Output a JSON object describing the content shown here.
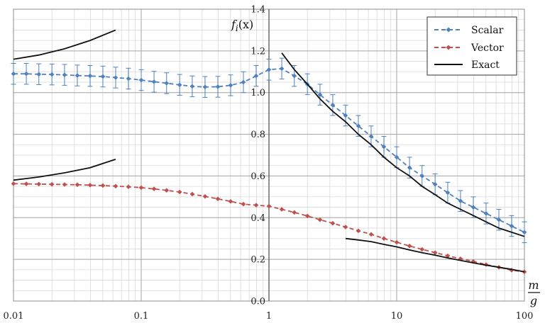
{
  "chart_data": {
    "type": "line",
    "x_scale": "log",
    "xlim": [
      0.01,
      100
    ],
    "ylim": [
      0,
      1.4
    ],
    "y_major_step": 0.2,
    "y_minor_step": 0.05,
    "grid": true,
    "x_ticks": [
      "0.01",
      "0.1",
      "1",
      "10",
      "100"
    ],
    "y_ticks": [
      "0.0",
      "0.2",
      "0.4",
      "0.6",
      "0.8",
      "1.0",
      "1.2",
      "1.4"
    ],
    "ylabel": "f_i(x)",
    "ylabel_parts": {
      "main": "f",
      "sub": "i",
      "arg": "(x)"
    },
    "xlabel_parts": {
      "num": "m",
      "den": "g"
    },
    "legend_position": "top-right",
    "legend": [
      {
        "name": "Scalar",
        "style": "dashed-dot",
        "color": "#4f81bd"
      },
      {
        "name": "Vector",
        "style": "dashed-dot",
        "color": "#c0504d"
      },
      {
        "name": "Exact",
        "style": "solid",
        "color": "#111111"
      }
    ],
    "series": [
      {
        "name": "Scalar",
        "color": "#4f81bd",
        "style": "dashed",
        "marker": "diamond",
        "x": [
          0.01,
          0.0126,
          0.0158,
          0.02,
          0.0251,
          0.0316,
          0.0398,
          0.0501,
          0.0631,
          0.0794,
          0.1,
          0.126,
          0.158,
          0.2,
          0.251,
          0.316,
          0.398,
          0.501,
          0.631,
          0.794,
          1.0,
          1.26,
          1.58,
          2.0,
          2.51,
          3.16,
          3.98,
          5.01,
          6.31,
          7.94,
          10.0,
          12.6,
          15.8,
          20.0,
          25.1,
          31.6,
          39.8,
          50.1,
          63.1,
          79.4,
          100
        ],
        "y": [
          1.09,
          1.09,
          1.088,
          1.087,
          1.085,
          1.082,
          1.08,
          1.077,
          1.072,
          1.067,
          1.06,
          1.052,
          1.045,
          1.037,
          1.03,
          1.027,
          1.028,
          1.035,
          1.05,
          1.08,
          1.11,
          1.115,
          1.08,
          1.04,
          0.99,
          0.94,
          0.89,
          0.84,
          0.79,
          0.74,
          0.69,
          0.64,
          0.6,
          0.56,
          0.52,
          0.48,
          0.45,
          0.42,
          0.39,
          0.36,
          0.33
        ],
        "error": [
          0.05,
          0.05,
          0.05,
          0.05,
          0.05,
          0.05,
          0.05,
          0.05,
          0.05,
          0.05,
          0.05,
          0.05,
          0.05,
          0.05,
          0.05,
          0.05,
          0.05,
          0.05,
          0.05,
          0.05,
          0.05,
          0.05,
          0.05,
          0.05,
          0.05,
          0.05,
          0.05,
          0.05,
          0.05,
          0.05,
          0.05,
          0.05,
          0.05,
          0.05,
          0.05,
          0.05,
          0.05,
          0.05,
          0.05,
          0.05,
          0.05
        ]
      },
      {
        "name": "Vector",
        "color": "#c0504d",
        "style": "dashed",
        "marker": "diamond",
        "x": [
          0.01,
          0.0126,
          0.0158,
          0.02,
          0.0251,
          0.0316,
          0.0398,
          0.0501,
          0.0631,
          0.0794,
          0.1,
          0.126,
          0.158,
          0.2,
          0.251,
          0.316,
          0.398,
          0.501,
          0.631,
          0.794,
          1.0,
          1.26,
          1.58,
          2.0,
          2.51,
          3.16,
          3.98,
          5.01,
          6.31,
          7.94,
          10.0,
          12.6,
          15.8,
          20.0,
          25.1,
          31.6,
          39.8,
          50.1,
          63.1,
          79.4,
          100
        ],
        "y": [
          0.563,
          0.562,
          0.561,
          0.56,
          0.559,
          0.558,
          0.556,
          0.554,
          0.551,
          0.548,
          0.544,
          0.538,
          0.531,
          0.523,
          0.513,
          0.502,
          0.49,
          0.478,
          0.465,
          0.46,
          0.455,
          0.44,
          0.425,
          0.408,
          0.39,
          0.373,
          0.355,
          0.337,
          0.32,
          0.3,
          0.282,
          0.264,
          0.248,
          0.232,
          0.217,
          0.203,
          0.19,
          0.175,
          0.162,
          0.148,
          0.14
        ]
      },
      {
        "name": "Exact",
        "color": "#111111",
        "style": "solid",
        "segments": [
          {
            "x": [
              0.01,
              0.0158,
              0.0251,
              0.0398,
              0.063
            ],
            "y": [
              1.16,
              1.18,
              1.21,
              1.25,
              1.3
            ]
          },
          {
            "x": [
              0.01,
              0.0158,
              0.0251,
              0.0398,
              0.063
            ],
            "y": [
              0.58,
              0.595,
              0.615,
              0.64,
              0.68
            ]
          },
          {
            "x": [
              1.26,
              1.58,
              2.0,
              2.51,
              3.16,
              3.98,
              5.01,
              6.31,
              7.94,
              10.0,
              12.6,
              15.8,
              20.0,
              25.1,
              31.6,
              39.8,
              50.1,
              63.1,
              79.4,
              100
            ],
            "y": [
              1.19,
              1.11,
              1.04,
              0.97,
              0.91,
              0.86,
              0.8,
              0.75,
              0.69,
              0.64,
              0.6,
              0.55,
              0.51,
              0.47,
              0.44,
              0.41,
              0.38,
              0.35,
              0.33,
              0.31
            ]
          },
          {
            "x": [
              3.98,
              5.01,
              6.31,
              7.94,
              10.0,
              12.6,
              15.8,
              20.0,
              25.1,
              31.6,
              39.8,
              50.1,
              63.1,
              79.4,
              100
            ],
            "y": [
              0.3,
              0.293,
              0.285,
              0.272,
              0.26,
              0.245,
              0.232,
              0.22,
              0.207,
              0.195,
              0.183,
              0.172,
              0.162,
              0.152,
              0.14
            ]
          }
        ]
      }
    ]
  }
}
